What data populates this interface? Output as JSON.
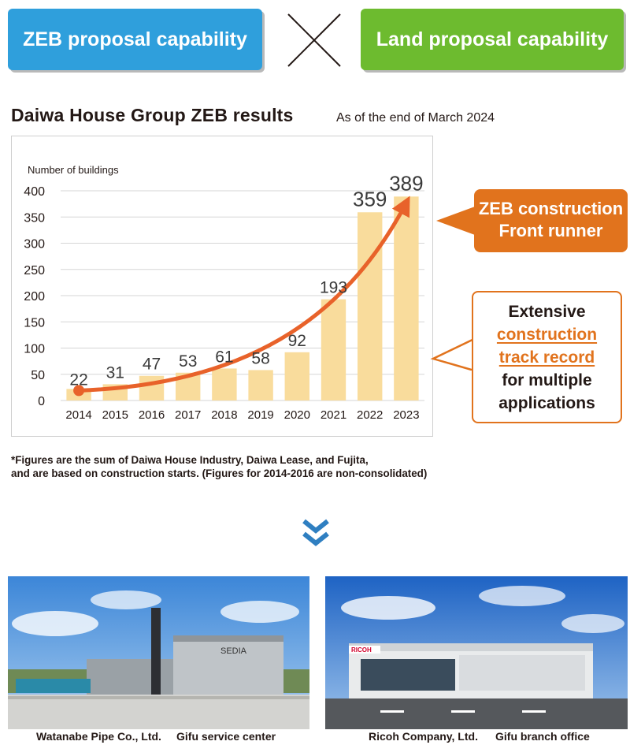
{
  "header": {
    "left_label": "ZEB proposal capability",
    "right_label": "Land proposal capability",
    "colors": {
      "left": "#2f9fdc",
      "right": "#6dbb2f"
    },
    "separator_icon": "times-icon"
  },
  "section": {
    "title": "Daiwa House Group ZEB results",
    "subtitle": "As of the end of March 2024"
  },
  "chart_data": {
    "type": "bar",
    "ylabel": "Number of buildings",
    "categories": [
      "2014",
      "2015",
      "2016",
      "2017",
      "2018",
      "2019",
      "2020",
      "2021",
      "2022",
      "2023"
    ],
    "values": [
      22,
      31,
      47,
      53,
      61,
      58,
      92,
      193,
      359,
      389
    ],
    "ylim": [
      0,
      400
    ],
    "yticks": [
      0,
      50,
      100,
      150,
      200,
      250,
      300,
      350,
      400
    ],
    "grid": true,
    "bar_color": "#f9dc9c",
    "trend_color": "#e8622a"
  },
  "callouts": {
    "front_runner": [
      "ZEB construction",
      "Front runner"
    ],
    "track_record": {
      "line1": "Extensive",
      "highlight1": "construction",
      "highlight2": "track record",
      "line3": "for multiple",
      "line4": "applications"
    }
  },
  "footnote": [
    "*Figures are the sum of Daiwa House Industry, Daiwa Lease, and Fujita,",
    "and are based on construction starts. (Figures for 2014-2016 are non-consolidated)"
  ],
  "chevron_icon": "double-chevron-down-icon",
  "photos": [
    {
      "company": "Watanabe Pipe Co., Ltd.",
      "site": "Gifu service center",
      "sign": "SEDIA"
    },
    {
      "company": "Ricoh Company, Ltd.",
      "site": "Gifu branch office",
      "sign": "RICOH"
    }
  ]
}
